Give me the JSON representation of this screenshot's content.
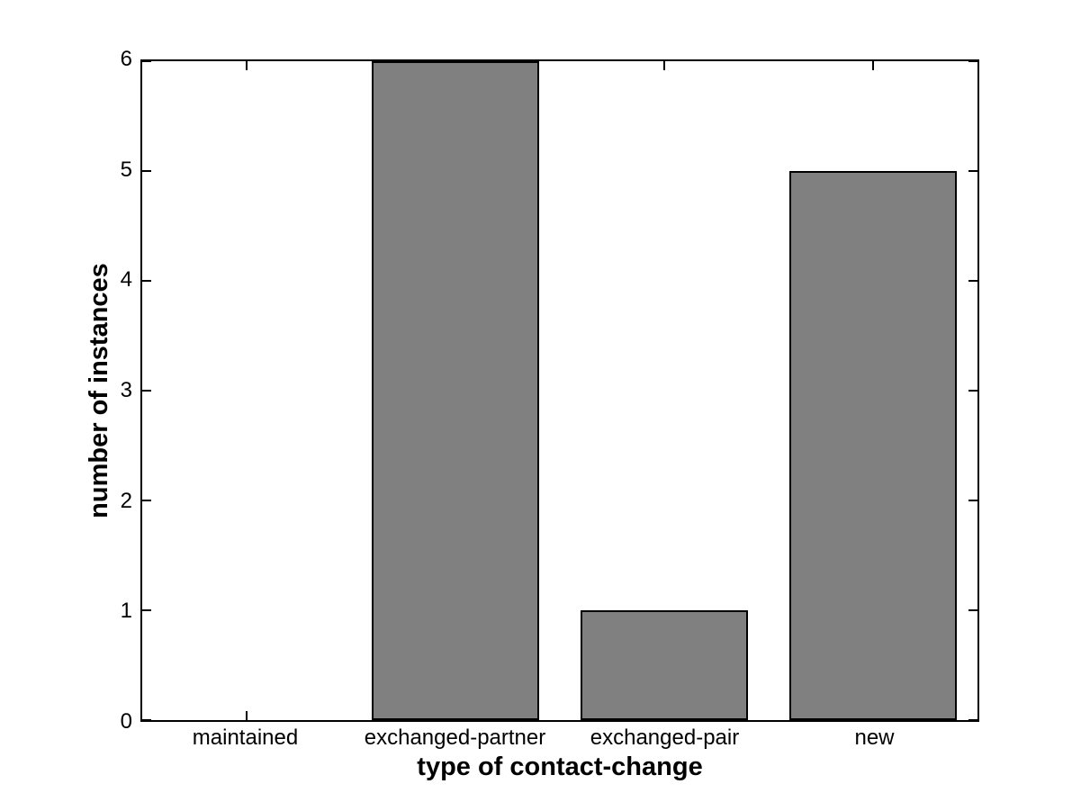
{
  "chart_data": {
    "type": "bar",
    "title": "",
    "categories": [
      "maintained",
      "exchanged-partner",
      "exchanged-pair",
      "new"
    ],
    "values": [
      0,
      6,
      1,
      5
    ],
    "xlabel": "type of contact-change",
    "ylabel": "number of instances",
    "ylim": [
      0,
      6
    ],
    "yticks": [
      0,
      1,
      2,
      3,
      4,
      5,
      6
    ],
    "bar_width_fraction": 0.8,
    "grid": false,
    "legend": null,
    "colors": {
      "bar_fill": "#808080",
      "bar_edge": "#000000",
      "axis": "#000000",
      "background": "#ffffff",
      "text": "#000000"
    }
  }
}
